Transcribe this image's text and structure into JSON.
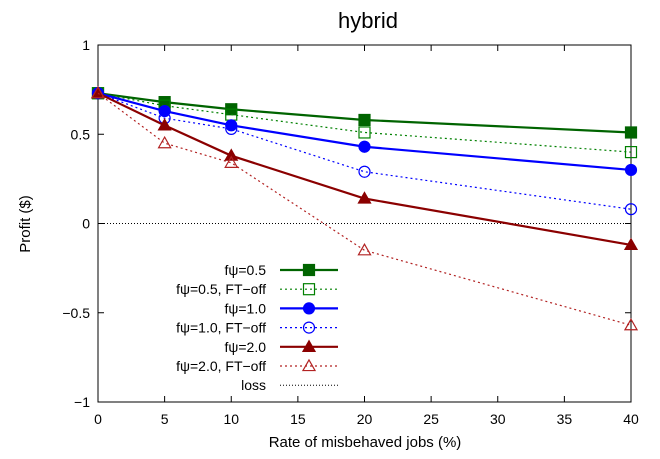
{
  "chart_data": {
    "type": "line",
    "title": "hybrid",
    "xlabel": "Rate of misbehaved jobs (%)",
    "ylabel": "Profit ($)",
    "xlim": [
      0,
      40
    ],
    "ylim": [
      -1,
      1
    ],
    "xticks": [
      0,
      5,
      10,
      15,
      20,
      25,
      30,
      35,
      40
    ],
    "yticks": [
      -1,
      -0.5,
      0,
      0.5,
      1
    ],
    "ytick_labels": [
      "−1",
      "−0.5",
      "0",
      "0.5",
      "1"
    ],
    "x": [
      0,
      5,
      10,
      20,
      40
    ],
    "series": [
      {
        "name": "fψ=0.5",
        "values": [
          0.73,
          0.68,
          0.64,
          0.58,
          0.51
        ],
        "color": "#006400",
        "dash": "solid",
        "marker": "square",
        "filled": true
      },
      {
        "name": "fψ=0.5, FT−off",
        "values": [
          0.73,
          0.66,
          0.61,
          0.51,
          0.4
        ],
        "color": "#008000",
        "dash": "dotted",
        "marker": "square",
        "filled": false
      },
      {
        "name": "fψ=1.0",
        "values": [
          0.73,
          0.63,
          0.55,
          0.43,
          0.3
        ],
        "color": "#0000ff",
        "dash": "solid",
        "marker": "circle",
        "filled": true
      },
      {
        "name": "fψ=1.0, FT−off",
        "values": [
          0.73,
          0.59,
          0.53,
          0.29,
          0.08
        ],
        "color": "#0000ff",
        "dash": "dotted",
        "marker": "circle",
        "filled": false
      },
      {
        "name": "fψ=2.0",
        "values": [
          0.73,
          0.55,
          0.38,
          0.14,
          -0.12
        ],
        "color": "#8b0000",
        "dash": "solid",
        "marker": "triangle",
        "filled": true
      },
      {
        "name": "fψ=2.0, FT−off",
        "values": [
          0.73,
          0.45,
          0.34,
          -0.15,
          -0.57
        ],
        "color": "#b22222",
        "dash": "dotted",
        "marker": "triangle",
        "filled": false
      }
    ],
    "reference_line": {
      "name": "loss",
      "value": 0,
      "color": "#000000",
      "dash": "dotted"
    },
    "grid": false,
    "legend_position": "bottom-left"
  }
}
